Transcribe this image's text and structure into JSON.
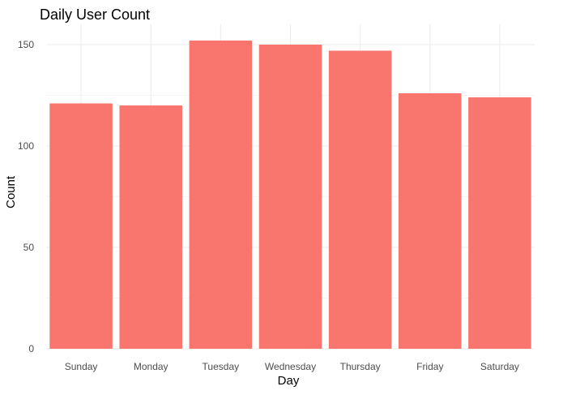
{
  "chart_data": {
    "type": "bar",
    "title": "Daily User Count",
    "xlabel": "Day",
    "ylabel": "Count",
    "categories": [
      "Sunday",
      "Monday",
      "Tuesday",
      "Wednesday",
      "Thursday",
      "Friday",
      "Saturday"
    ],
    "values": [
      121,
      120,
      152,
      150,
      147,
      126,
      124
    ],
    "ylim": [
      0,
      160
    ],
    "yticks": [
      0,
      50,
      100,
      150
    ],
    "grid": true,
    "legend": "none",
    "colors": {
      "bar": "#F8766D",
      "grid": "#EBEBEB",
      "text": "#000000",
      "tick_text": "#4D4D4D"
    }
  }
}
